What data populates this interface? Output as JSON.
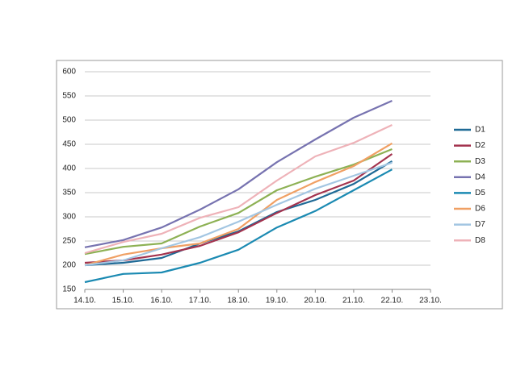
{
  "chart_data": {
    "type": "line",
    "categories": [
      "14.10.",
      "15.10.",
      "16.10.",
      "17.10.",
      "18.10.",
      "19.10.",
      "20.10.",
      "21.10.",
      "22.10.",
      "23.10."
    ],
    "ylim": [
      150,
      600
    ],
    "yticks": [
      150,
      200,
      250,
      300,
      350,
      400,
      450,
      500,
      550,
      600
    ],
    "grid": true,
    "legend": "right",
    "series": [
      {
        "name": "D1",
        "color": "#1f6a96",
        "values": [
          200,
          205,
          215,
          245,
          270,
          310,
          335,
          368,
          415,
          null
        ]
      },
      {
        "name": "D2",
        "color": "#a3334e",
        "values": [
          205,
          210,
          222,
          240,
          268,
          308,
          345,
          375,
          430,
          null
        ]
      },
      {
        "name": "D3",
        "color": "#8db154",
        "values": [
          223,
          238,
          245,
          280,
          308,
          355,
          383,
          408,
          440,
          null
        ]
      },
      {
        "name": "D4",
        "color": "#7773b0",
        "values": [
          237,
          252,
          278,
          315,
          357,
          413,
          460,
          505,
          540,
          null
        ]
      },
      {
        "name": "D5",
        "color": "#1b8ab2",
        "values": [
          165,
          182,
          185,
          205,
          232,
          278,
          312,
          355,
          398,
          null
        ]
      },
      {
        "name": "D6",
        "color": "#f0a064",
        "values": [
          200,
          222,
          235,
          245,
          275,
          335,
          372,
          405,
          452,
          null
        ]
      },
      {
        "name": "D7",
        "color": "#a3c6e2",
        "values": [
          200,
          210,
          235,
          258,
          290,
          325,
          358,
          385,
          412,
          null
        ]
      },
      {
        "name": "D8",
        "color": "#eeb2b8",
        "values": [
          225,
          248,
          265,
          298,
          320,
          375,
          425,
          453,
          490,
          null
        ]
      }
    ]
  }
}
